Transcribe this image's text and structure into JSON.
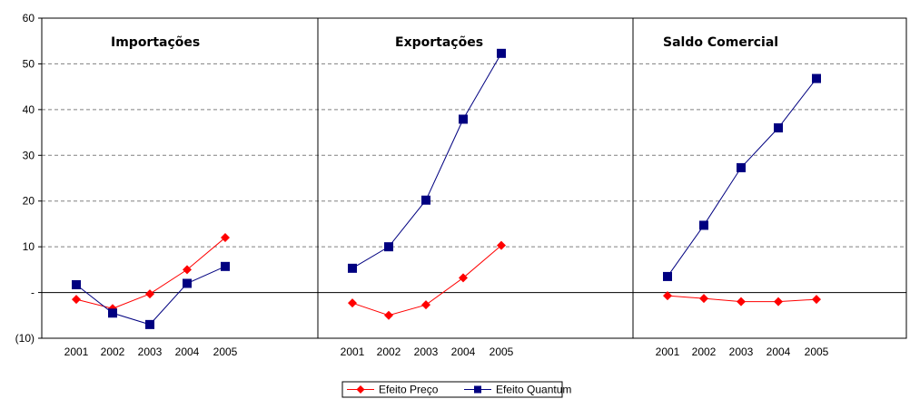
{
  "chart_data": {
    "type": "line",
    "y_axis": {
      "ylim": [
        -10,
        60
      ],
      "ticks": [
        {
          "value": 60,
          "label": "60"
        },
        {
          "value": 50,
          "label": "50"
        },
        {
          "value": 40,
          "label": "40"
        },
        {
          "value": 30,
          "label": "30"
        },
        {
          "value": 20,
          "label": "20"
        },
        {
          "value": 10,
          "label": "10"
        },
        {
          "value": 0,
          "label": "-"
        },
        {
          "value": -10,
          "label": "(10)"
        }
      ],
      "grid": true
    },
    "categories": [
      "2001",
      "2002",
      "2003",
      "2004",
      "2005"
    ],
    "series_styles": [
      {
        "name": "Efeito Preço",
        "color": "#ff0000",
        "marker": "diamond"
      },
      {
        "name": "Efeito Quantum",
        "color": "#000080",
        "marker": "square"
      }
    ],
    "panels": [
      {
        "title": "Importações",
        "series": [
          {
            "name": "Efeito Preço",
            "values": [
              -1.5,
              -3.5,
              -0.3,
              5.0,
              12.0
            ]
          },
          {
            "name": "Efeito Quantum",
            "values": [
              1.7,
              -4.5,
              -7.0,
              2.0,
              5.7
            ]
          }
        ]
      },
      {
        "title": "Exportações",
        "series": [
          {
            "name": "Efeito Preço",
            "values": [
              -2.3,
              -5.0,
              -2.7,
              3.2,
              10.3
            ]
          },
          {
            "name": "Efeito Quantum",
            "values": [
              5.3,
              10.0,
              20.2,
              37.9,
              52.3
            ]
          }
        ]
      },
      {
        "title": "Saldo Comercial",
        "series": [
          {
            "name": "Efeito Preço",
            "values": [
              -0.7,
              -1.3,
              -2.0,
              -2.0,
              -1.5
            ]
          },
          {
            "name": "Efeito Quantum",
            "values": [
              3.5,
              14.7,
              27.3,
              36.0,
              46.8
            ]
          }
        ]
      }
    ],
    "legend": {
      "placement": "bottom-center",
      "entries": [
        "Efeito Preço",
        "Efeito Quantum"
      ]
    }
  }
}
